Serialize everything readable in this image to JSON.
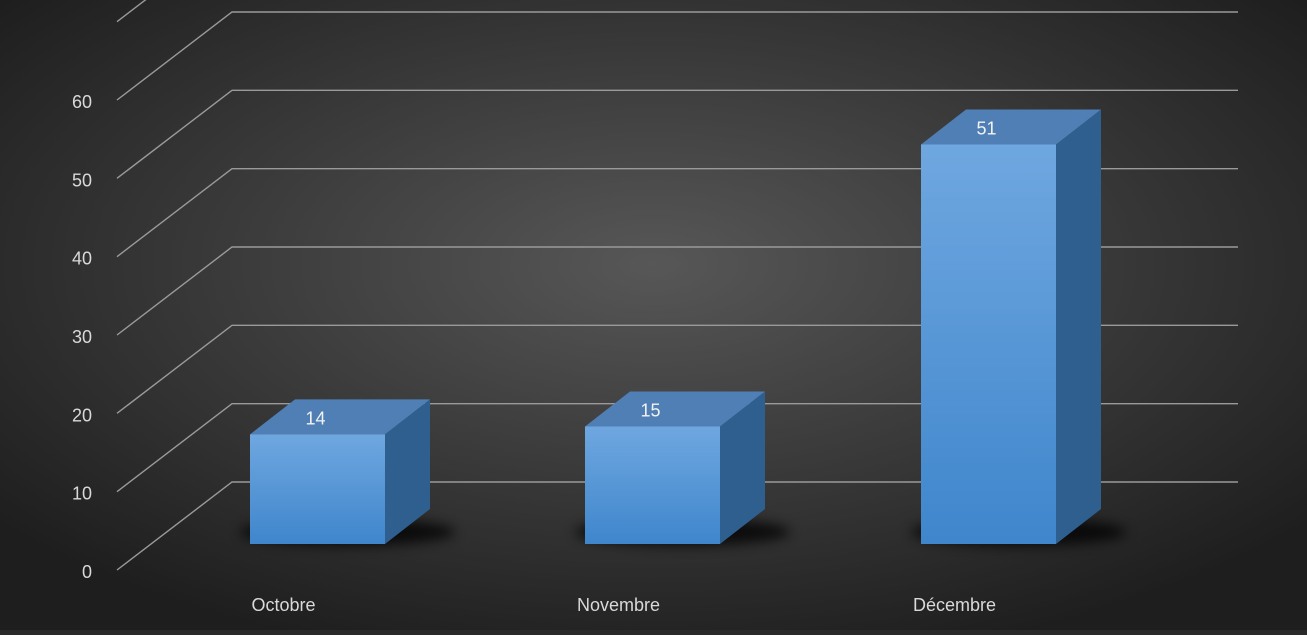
{
  "chart_data": {
    "type": "bar",
    "categories": [
      "Octobre",
      "Novembre",
      "Décembre"
    ],
    "values": [
      14,
      15,
      51
    ],
    "title": "",
    "xlabel": "",
    "ylabel": "",
    "ylim": [
      0,
      60
    ],
    "yticks": [
      0,
      10,
      20,
      30,
      40,
      50,
      60
    ],
    "grid": true,
    "legend": "none",
    "colors": {
      "background_center": "#575757",
      "background_edge": "#1e1e1e",
      "bar_front_top": "#6fa7e0",
      "bar_front_bottom": "#3f86cc",
      "bar_side": "#2f5f8f",
      "bar_top": "#4f7fb5",
      "grid": "#9a9a9a",
      "text": "#d9d9d9"
    }
  }
}
